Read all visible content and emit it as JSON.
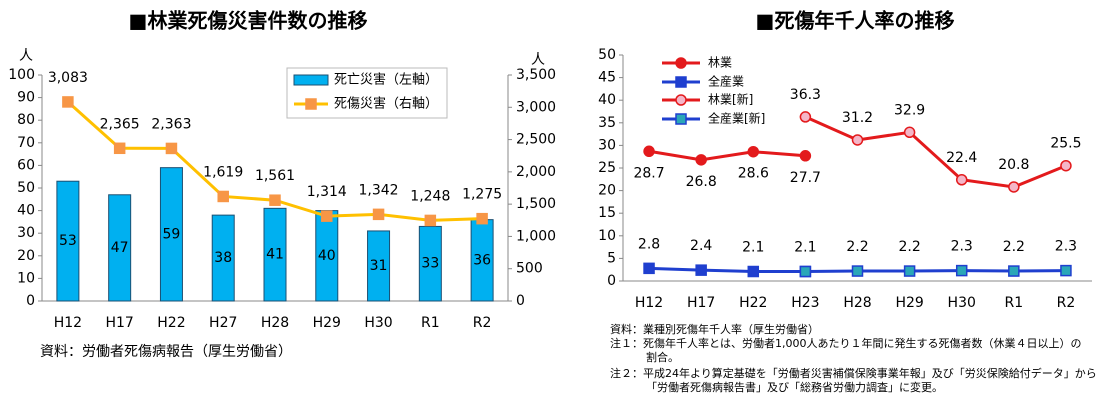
{
  "chart_data": [
    {
      "type": "combo",
      "title": "■林業死傷災害件数の推移",
      "y_unit": "人",
      "y2_unit": "人",
      "categories": [
        "H12",
        "H17",
        "H22",
        "H27",
        "H28",
        "H29",
        "H30",
        "R1",
        "R2"
      ],
      "series": [
        {
          "name": "死亡災害（左軸）",
          "type": "bar",
          "color": "#00b0f0",
          "values": [
            53,
            47,
            59,
            38,
            41,
            40,
            31,
            33,
            36
          ]
        },
        {
          "name": "死傷災害（右軸）",
          "type": "line",
          "axis": "y2",
          "color": "#ffc000",
          "marker_color": "#f79646",
          "values": [
            3083,
            2365,
            2363,
            1619,
            1561,
            1314,
            1342,
            1248,
            1275
          ],
          "value_labels": [
            "3,083",
            "2,365",
            "2,363",
            "1,619",
            "1,561",
            "1,314",
            "1,342",
            "1,248",
            "1,275"
          ]
        }
      ],
      "ylim": [
        0,
        100
      ],
      "yticks": [
        0,
        10,
        20,
        30,
        40,
        50,
        60,
        70,
        80,
        90,
        100
      ],
      "y2lim": [
        0,
        3500
      ],
      "y2ticks": [
        0,
        500,
        {
          "value": 1000,
          "label": "1,000"
        },
        {
          "value": 1500,
          "label": "1,500"
        },
        {
          "value": 2000,
          "label": "2,000"
        },
        {
          "value": 2500,
          "label": "2,500"
        },
        {
          "value": 3000,
          "label": "3,000"
        },
        {
          "value": 3500,
          "label": "3,500"
        }
      ],
      "grid": false,
      "notes": [
        "資料：労働者死傷病報告（厚生労働省）"
      ]
    },
    {
      "type": "line",
      "title": "■死傷年千人率の推移",
      "categories": [
        "H12",
        "H17",
        "H22",
        "H23",
        "H28",
        "H29",
        "H30",
        "R1",
        "R2"
      ],
      "series": [
        {
          "name": "林業",
          "color": "#e31a1c",
          "marker": "circle",
          "marker_color": "#e31a1c",
          "values": [
            28.7,
            26.8,
            28.6,
            27.7,
            null,
            null,
            null,
            null,
            null
          ]
        },
        {
          "name": "全産業",
          "color": "#1f3fcf",
          "marker": "square",
          "marker_color": "#1f3fcf",
          "values": [
            2.8,
            2.4,
            2.1,
            2.1,
            null,
            null,
            null,
            null,
            null
          ]
        },
        {
          "name": "林業[新]",
          "color": "#e31a1c",
          "marker": "circle",
          "marker_color": "#f4b6c8",
          "values": [
            null,
            null,
            null,
            36.3,
            31.2,
            32.9,
            22.4,
            20.8,
            25.5
          ]
        },
        {
          "name": "全産業[新]",
          "color": "#1f3fcf",
          "marker": "square",
          "marker_color": "#2aa7b8",
          "values": [
            null,
            null,
            null,
            2.1,
            2.2,
            2.2,
            2.3,
            2.2,
            2.3
          ]
        }
      ],
      "ylim": [
        0,
        50
      ],
      "yticks": [
        0,
        5,
        10,
        15,
        20,
        25,
        30,
        35,
        40,
        45,
        50
      ],
      "grid": false,
      "notes": [
        "資料：業種別死傷年千人率（厚生労働省）",
        "注１：死傷年千人率とは、労働者1,000人あたり１年間に発生する死傷者数（休業４日以上）の割合。",
        "注２：平成24年より算定基礎を「労働者災害補償保険事業年報」及び「労災保険給付データ」から「労働者死傷病報告書」及び「総務省労働力調査」に変更。"
      ]
    }
  ]
}
